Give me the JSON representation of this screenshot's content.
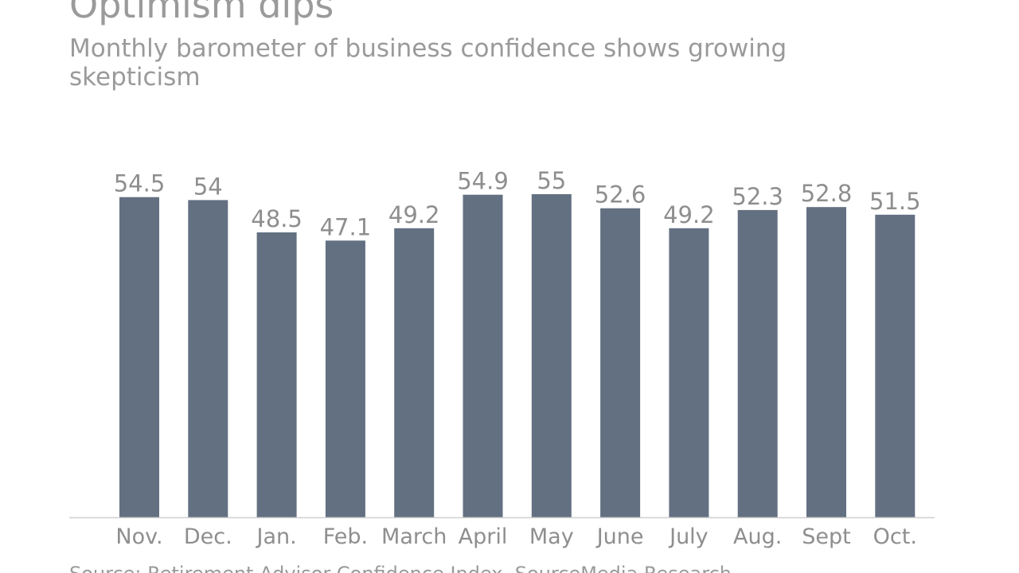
{
  "chart_data": {
    "type": "bar",
    "title": "Optimism dips",
    "subtitle": "Monthly barometer of business confidence shows growing skepticism",
    "categories": [
      "Nov.",
      "Dec.",
      "Jan.",
      "Feb.",
      "March",
      "April",
      "May",
      "June",
      "July",
      "Aug.",
      "Sept",
      "Oct."
    ],
    "values": [
      54.5,
      54,
      48.5,
      47.1,
      49.2,
      54.9,
      55,
      52.6,
      49.2,
      52.3,
      52.8,
      51.5
    ],
    "value_labels": [
      "54.5",
      "54",
      "48.5",
      "47.1",
      "49.2",
      "54.9",
      "55",
      "52.6",
      "49.2",
      "52.3",
      "52.8",
      "51.5"
    ],
    "ylim": [
      0,
      55
    ],
    "xlabel": "",
    "ylabel": "",
    "grid": false,
    "bar_color": "#637082",
    "source": "Source: Retirement Advisor Confidence Index, SourceMedia Research"
  }
}
